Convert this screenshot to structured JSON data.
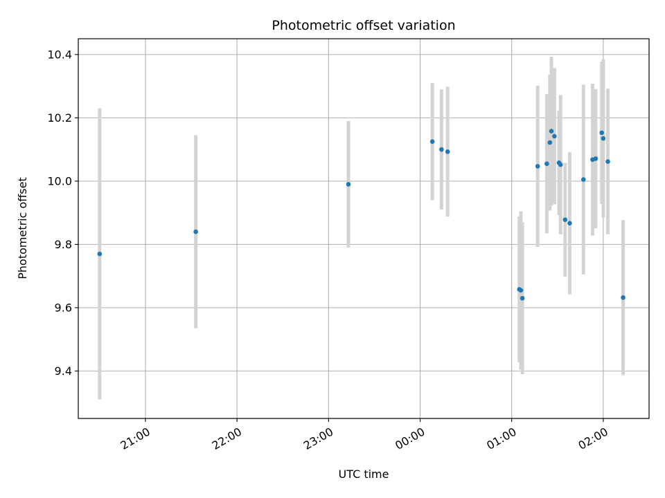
{
  "chart_data": {
    "type": "scatter",
    "title": "Photometric offset variation",
    "xlabel": "UTC time",
    "ylabel": "Photometric offset",
    "x_unit": "UTC time (HH:MM), starting 20:00 on the first night",
    "xlim": [
      "20:16",
      "02:30"
    ],
    "ylim": [
      9.25,
      10.45
    ],
    "x_ticks": [
      {
        "t": "21:00",
        "label": "21:00"
      },
      {
        "t": "22:00",
        "label": "22:00"
      },
      {
        "t": "23:00",
        "label": "23:00"
      },
      {
        "t": "00:00",
        "label": "00:00"
      },
      {
        "t": "01:00",
        "label": "01:00"
      },
      {
        "t": "02:00",
        "label": "02:00"
      }
    ],
    "y_ticks": [
      {
        "v": 9.4,
        "label": "9.4"
      },
      {
        "v": 9.6,
        "label": "9.6"
      },
      {
        "v": 9.8,
        "label": "9.8"
      },
      {
        "v": 10.0,
        "label": "10.0"
      },
      {
        "v": 10.2,
        "label": "10.2"
      },
      {
        "v": 10.4,
        "label": "10.4"
      }
    ],
    "grid": true,
    "colors": {
      "point": "#1f77b4",
      "errorbar": "#d3d3d3",
      "grid": "#b0b0b0"
    },
    "points": [
      {
        "t": "20:30",
        "y": 9.77,
        "err": 0.46
      },
      {
        "t": "21:33",
        "y": 9.84,
        "err": 0.305
      },
      {
        "t": "23:13",
        "y": 9.99,
        "err": 0.2
      },
      {
        "t": "00:08",
        "y": 10.125,
        "err": 0.185
      },
      {
        "t": "00:14",
        "y": 10.1,
        "err": 0.19
      },
      {
        "t": "00:18",
        "y": 10.093,
        "err": 0.205
      },
      {
        "t": "01:05",
        "y": 9.658,
        "err": 0.23
      },
      {
        "t": "01:06",
        "y": 9.655,
        "err": 0.25
      },
      {
        "t": "01:07",
        "y": 9.63,
        "err": 0.24
      },
      {
        "t": "01:17",
        "y": 10.047,
        "err": 0.255
      },
      {
        "t": "01:23",
        "y": 10.055,
        "err": 0.22
      },
      {
        "t": "01:25",
        "y": 10.122,
        "err": 0.215
      },
      {
        "t": "01:26",
        "y": 10.158,
        "err": 0.235
      },
      {
        "t": "01:28",
        "y": 10.142,
        "err": 0.215
      },
      {
        "t": "01:31",
        "y": 10.058,
        "err": 0.165
      },
      {
        "t": "01:32",
        "y": 10.052,
        "err": 0.22
      },
      {
        "t": "01:35",
        "y": 9.878,
        "err": 0.18
      },
      {
        "t": "01:38",
        "y": 9.867,
        "err": 0.225
      },
      {
        "t": "01:47",
        "y": 10.005,
        "err": 0.3
      },
      {
        "t": "01:53",
        "y": 10.068,
        "err": 0.24
      },
      {
        "t": "01:55",
        "y": 10.071,
        "err": 0.22
      },
      {
        "t": "01:59",
        "y": 10.153,
        "err": 0.225
      },
      {
        "t": "02:00",
        "y": 10.135,
        "err": 0.25
      },
      {
        "t": "02:03",
        "y": 10.062,
        "err": 0.23
      },
      {
        "t": "02:13",
        "y": 9.632,
        "err": 0.245
      }
    ]
  }
}
